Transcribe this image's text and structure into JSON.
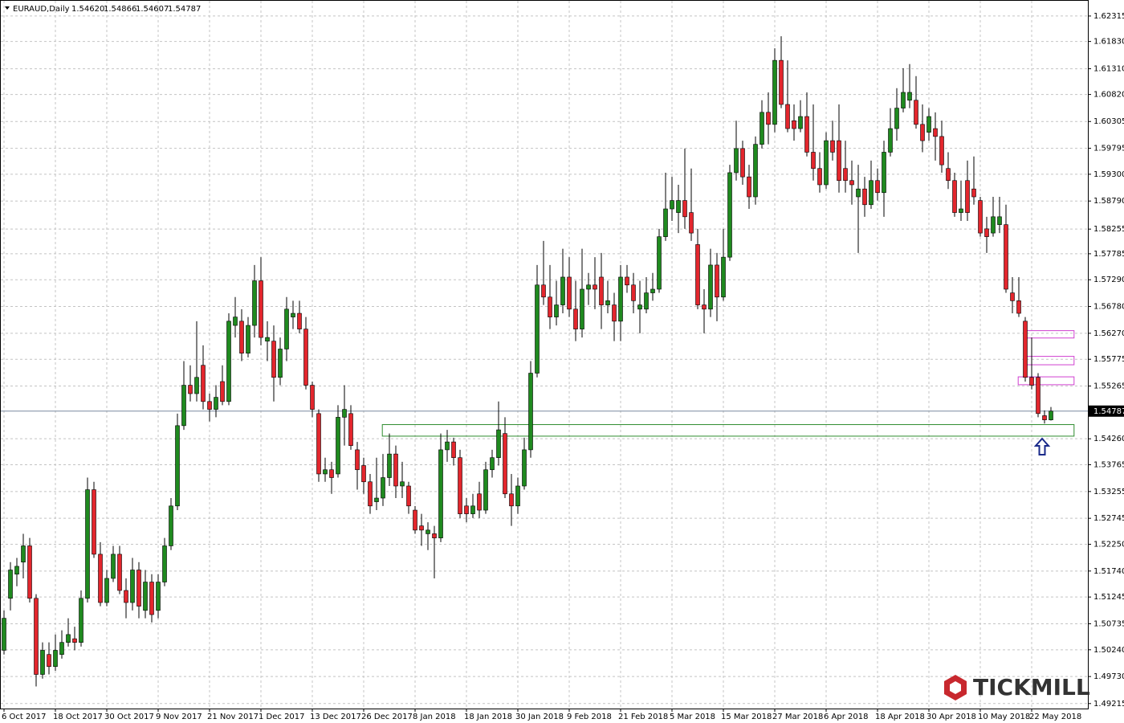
{
  "chart_data": {
    "type": "candlestick",
    "title": "EURAUD,Daily",
    "title_values": [
      "1.54620",
      "1.54866",
      "1.54607",
      "1.54787"
    ],
    "watermark": "TICKMILL",
    "up_color": "#1f8a1f",
    "down_color": "#e3262d",
    "grid": true,
    "ylim": [
      1.4912,
      1.6262
    ],
    "yticks": [
      1.62315,
      {
        "value": 1.6183,
        "label": "1.61830"
      },
      {
        "value": 1.6131,
        "label": "1.61310"
      },
      {
        "value": 1.6082,
        "label": "1.60820"
      },
      1.60305,
      1.59795,
      {
        "value": 1.593,
        "label": "1.59300"
      },
      {
        "value": 1.5879,
        "label": "1.58790"
      },
      1.58255,
      1.57785,
      {
        "value": 1.5729,
        "label": "1.57290"
      },
      {
        "value": 1.5678,
        "label": "1.56780"
      },
      {
        "value": 1.5627,
        "label": "1.56270"
      },
      1.55775,
      1.55265,
      {
        "value": 1.5426,
        "label": "1.54260"
      },
      1.53765,
      1.53255,
      1.52745,
      {
        "value": 1.5225,
        "label": "1.52250"
      },
      {
        "value": 1.5174,
        "label": "1.51740"
      },
      1.51245,
      1.50735,
      {
        "value": 1.5024,
        "label": "1.50240"
      },
      {
        "value": 1.4973,
        "label": "1.49730"
      },
      1.49215
    ],
    "current_price": {
      "value": 1.54787,
      "label": "1.54787"
    },
    "zones": [
      {
        "range": [
          1.5431,
          1.5453
        ],
        "x": [
          58.9,
          166.6
        ],
        "color": "#2e8b2e"
      },
      {
        "range": [
          1.5618,
          1.5632
        ],
        "x": [
          159.1,
          166.6
        ],
        "color": "#d040d0"
      },
      {
        "range": [
          1.5567,
          1.5583
        ],
        "x": [
          158.9,
          166.6
        ],
        "color": "#d040d0"
      },
      {
        "range": [
          1.5529,
          1.5544
        ],
        "x": [
          157.9,
          166.6
        ],
        "color": "#d040d0"
      }
    ],
    "categories": [
      "6 Oct 2017",
      null,
      null,
      null,
      null,
      null,
      null,
      null,
      "18 Oct 2017",
      null,
      null,
      null,
      null,
      null,
      null,
      null,
      "30 Oct 2017",
      null,
      null,
      null,
      null,
      null,
      null,
      null,
      "9 Nov 2017",
      null,
      null,
      null,
      null,
      null,
      null,
      null,
      "21 Nov 2017",
      null,
      null,
      null,
      null,
      null,
      null,
      null,
      "1 Dec 2017",
      null,
      null,
      null,
      null,
      null,
      null,
      null,
      "13 Dec 2017",
      null,
      null,
      null,
      null,
      null,
      null,
      null,
      "26 Dec 2017",
      null,
      null,
      null,
      null,
      null,
      null,
      null,
      "8 Jan 2018",
      null,
      null,
      null,
      null,
      null,
      null,
      null,
      "18 Jan 2018",
      null,
      null,
      null,
      null,
      null,
      null,
      null,
      "30 Jan 2018",
      null,
      null,
      null,
      null,
      null,
      null,
      null,
      "9 Feb 2018",
      null,
      null,
      null,
      null,
      null,
      null,
      null,
      "21 Feb 2018",
      null,
      null,
      null,
      null,
      null,
      null,
      null,
      "5 Mar 2018",
      null,
      null,
      null,
      null,
      null,
      null,
      null,
      "15 Mar 2018",
      null,
      null,
      null,
      null,
      null,
      null,
      null,
      "27 Mar 2018",
      null,
      null,
      null,
      null,
      null,
      null,
      null,
      "6 Apr 2018",
      null,
      null,
      null,
      null,
      null,
      null,
      null,
      "18 Apr 2018",
      null,
      null,
      null,
      null,
      null,
      null,
      null,
      "30 Apr 2018",
      null,
      null,
      null,
      null,
      null,
      null,
      null,
      "10 May 2018",
      null,
      null,
      null,
      null,
      null,
      null,
      null,
      "22 May 2018",
      null,
      null,
      null
    ],
    "ohlc": [
      [
        1.5023,
        1.5099,
        1.5015,
        1.5084
      ],
      [
        1.5122,
        1.5191,
        1.5099,
        1.5176
      ],
      [
        1.5168,
        1.5199,
        1.5145,
        1.5183
      ],
      [
        1.5191,
        1.5245,
        1.516,
        1.5222
      ],
      [
        1.5222,
        1.5237,
        1.5114,
        1.5122
      ],
      [
        1.5122,
        1.513,
        1.4954,
        1.4977
      ],
      [
        1.4977,
        1.5038,
        1.4969,
        1.5023
      ],
      [
        1.5015,
        1.5038,
        1.4977,
        1.4992
      ],
      [
        1.4992,
        1.5053,
        1.4984,
        1.5023
      ],
      [
        1.5015,
        1.5061,
        1.5007,
        1.5038
      ],
      [
        1.5038,
        1.5084,
        1.503,
        1.5053
      ],
      [
        1.5045,
        1.5068,
        1.5023,
        1.5038
      ],
      [
        1.5038,
        1.5137,
        1.503,
        1.5122
      ],
      [
        1.5122,
        1.5352,
        1.5114,
        1.5329
      ],
      [
        1.5329,
        1.5344,
        1.5199,
        1.5206
      ],
      [
        1.5206,
        1.5229,
        1.5107,
        1.5114
      ],
      [
        1.5114,
        1.5176,
        1.5107,
        1.516
      ],
      [
        1.516,
        1.5222,
        1.5153,
        1.5206
      ],
      [
        1.5206,
        1.5222,
        1.513,
        1.5137
      ],
      [
        1.5137,
        1.516,
        1.5084,
        1.5114
      ],
      [
        1.5114,
        1.5199,
        1.5099,
        1.5176
      ],
      [
        1.5176,
        1.5191,
        1.5084,
        1.5107
      ],
      [
        1.5099,
        1.5176,
        1.5084,
        1.5153
      ],
      [
        1.5153,
        1.5168,
        1.5076,
        1.5091
      ],
      [
        1.5099,
        1.5168,
        1.5084,
        1.5153
      ],
      [
        1.5153,
        1.5237,
        1.5145,
        1.5222
      ],
      [
        1.5222,
        1.5313,
        1.5214,
        1.5298
      ],
      [
        1.5298,
        1.5474,
        1.529,
        1.5451
      ],
      [
        1.5451,
        1.5574,
        1.5443,
        1.5528
      ],
      [
        1.5528,
        1.5566,
        1.5497,
        1.5512
      ],
      [
        1.5512,
        1.565,
        1.5497,
        1.5543
      ],
      [
        1.5566,
        1.5604,
        1.5482,
        1.5497
      ],
      [
        1.5497,
        1.5512,
        1.5459,
        1.5482
      ],
      [
        1.5482,
        1.5528,
        1.5467,
        1.5505
      ],
      [
        1.5535,
        1.5566,
        1.549,
        1.5497
      ],
      [
        1.5497,
        1.5665,
        1.549,
        1.565
      ],
      [
        1.5642,
        1.5696,
        1.5619,
        1.5658
      ],
      [
        1.565,
        1.5673,
        1.5574,
        1.5589
      ],
      [
        1.5589,
        1.5658,
        1.5581,
        1.5642
      ],
      [
        1.5642,
        1.5757,
        1.5619,
        1.5727
      ],
      [
        1.5727,
        1.5772,
        1.5604,
        1.5619
      ],
      [
        1.5612,
        1.565,
        1.5574,
        1.5619
      ],
      [
        1.5612,
        1.5642,
        1.5497,
        1.5543
      ],
      [
        1.5543,
        1.5619,
        1.5528,
        1.5597
      ],
      [
        1.5597,
        1.5696,
        1.5574,
        1.5673
      ],
      [
        1.5658,
        1.5689,
        1.5635,
        1.5665
      ],
      [
        1.5665,
        1.5689,
        1.5627,
        1.5635
      ],
      [
        1.5635,
        1.5658,
        1.552,
        1.5528
      ],
      [
        1.5528,
        1.5535,
        1.5467,
        1.5482
      ],
      [
        1.5474,
        1.5482,
        1.5344,
        1.5359
      ],
      [
        1.5359,
        1.539,
        1.5344,
        1.5367
      ],
      [
        1.5367,
        1.5382,
        1.5321,
        1.5352
      ],
      [
        1.5359,
        1.549,
        1.5352,
        1.5467
      ],
      [
        1.5467,
        1.5528,
        1.5413,
        1.5482
      ],
      [
        1.5474,
        1.549,
        1.5405,
        1.5413
      ],
      [
        1.5405,
        1.542,
        1.5329,
        1.5367
      ],
      [
        1.5375,
        1.539,
        1.5321,
        1.5344
      ],
      [
        1.5344,
        1.5359,
        1.5283,
        1.5298
      ],
      [
        1.5306,
        1.539,
        1.529,
        1.5313
      ],
      [
        1.5313,
        1.5397,
        1.5298,
        1.5352
      ],
      [
        1.5352,
        1.5436,
        1.5336,
        1.5397
      ],
      [
        1.5397,
        1.5413,
        1.5313,
        1.5336
      ],
      [
        1.5336,
        1.5382,
        1.5313,
        1.5344
      ],
      [
        1.5336,
        1.5344,
        1.5283,
        1.5298
      ],
      [
        1.529,
        1.5298,
        1.5245,
        1.5252
      ],
      [
        1.526,
        1.5283,
        1.5222,
        1.5252
      ],
      [
        1.5245,
        1.5267,
        1.5214,
        1.5252
      ],
      [
        1.5245,
        1.526,
        1.516,
        1.5237
      ],
      [
        1.5237,
        1.5436,
        1.5229,
        1.5405
      ],
      [
        1.5405,
        1.5443,
        1.5382,
        1.542
      ],
      [
        1.542,
        1.5428,
        1.5375,
        1.539
      ],
      [
        1.539,
        1.5405,
        1.5275,
        1.5283
      ],
      [
        1.5298,
        1.5313,
        1.5267,
        1.5283
      ],
      [
        1.5283,
        1.5321,
        1.5275,
        1.5298
      ],
      [
        1.5321,
        1.5344,
        1.5275,
        1.529
      ],
      [
        1.529,
        1.5382,
        1.5283,
        1.5367
      ],
      [
        1.5367,
        1.5405,
        1.5352,
        1.539
      ],
      [
        1.539,
        1.5497,
        1.5375,
        1.5443
      ],
      [
        1.5436,
        1.5467,
        1.5313,
        1.5321
      ],
      [
        1.5321,
        1.5359,
        1.526,
        1.5298
      ],
      [
        1.5298,
        1.5352,
        1.5283,
        1.5336
      ],
      [
        1.5336,
        1.5428,
        1.5329,
        1.5405
      ],
      [
        1.5405,
        1.5574,
        1.539,
        1.5551
      ],
      [
        1.5551,
        1.5757,
        1.5543,
        1.5719
      ],
      [
        1.5719,
        1.5803,
        1.5681,
        1.5696
      ],
      [
        1.5696,
        1.5757,
        1.5635,
        1.5658
      ],
      [
        1.5658,
        1.5727,
        1.5642,
        1.5681
      ],
      [
        1.5681,
        1.5788,
        1.5665,
        1.5734
      ],
      [
        1.5734,
        1.5772,
        1.5658,
        1.5673
      ],
      [
        1.5673,
        1.5727,
        1.5612,
        1.5635
      ],
      [
        1.5635,
        1.5788,
        1.5619,
        1.5711
      ],
      [
        1.5711,
        1.5742,
        1.5681,
        1.5719
      ],
      [
        1.5719,
        1.5772,
        1.5673,
        1.5711
      ],
      [
        1.5734,
        1.578,
        1.5635,
        1.5681
      ],
      [
        1.5681,
        1.5727,
        1.5665,
        1.5689
      ],
      [
        1.5681,
        1.5704,
        1.5612,
        1.565
      ],
      [
        1.565,
        1.5757,
        1.5612,
        1.5734
      ],
      [
        1.5734,
        1.5757,
        1.5704,
        1.5719
      ],
      [
        1.5719,
        1.5742,
        1.5665,
        1.5689
      ],
      [
        1.5673,
        1.5727,
        1.5627,
        1.5681
      ],
      [
        1.5673,
        1.5734,
        1.5665,
        1.5704
      ],
      [
        1.5704,
        1.5742,
        1.5689,
        1.5711
      ],
      [
        1.5711,
        1.5826,
        1.5704,
        1.5811
      ],
      [
        1.5811,
        1.5933,
        1.5803,
        1.5864
      ],
      [
        1.5864,
        1.5925,
        1.5841,
        1.588
      ],
      [
        1.5857,
        1.591,
        1.5818,
        1.588
      ],
      [
        1.588,
        1.5979,
        1.5826,
        1.5849
      ],
      [
        1.5857,
        1.5941,
        1.5803,
        1.5818
      ],
      [
        1.5796,
        1.5826,
        1.5673,
        1.5681
      ],
      [
        1.5681,
        1.5711,
        1.5627,
        1.5673
      ],
      [
        1.5673,
        1.5788,
        1.5658,
        1.5757
      ],
      [
        1.5757,
        1.578,
        1.565,
        1.5696
      ],
      [
        1.5696,
        1.5826,
        1.5689,
        1.5772
      ],
      [
        1.5772,
        1.5948,
        1.5765,
        1.5933
      ],
      [
        1.5933,
        1.6032,
        1.5918,
        1.5979
      ],
      [
        1.5979,
        1.5994,
        1.591,
        1.5925
      ],
      [
        1.5925,
        1.5948,
        1.5864,
        1.5887
      ],
      [
        1.5887,
        1.6002,
        1.5872,
        1.5987
      ],
      [
        1.5987,
        1.6071,
        1.5979,
        1.6048
      ],
      [
        1.6048,
        1.6086,
        1.5987,
        1.6025
      ],
      [
        1.6025,
        1.617,
        1.601,
        1.6147
      ],
      [
        1.6147,
        1.6193,
        1.6056,
        1.6063
      ],
      [
        1.6063,
        1.6147,
        1.601,
        1.6017
      ],
      [
        1.6032,
        1.6063,
        1.5994,
        1.6017
      ],
      [
        1.6017,
        1.6071,
        1.601,
        1.604
      ],
      [
        1.604,
        1.6086,
        1.5964,
        1.5972
      ],
      [
        1.5972,
        1.6063,
        1.5918,
        1.5941
      ],
      [
        1.5941,
        1.5972,
        1.5895,
        1.591
      ],
      [
        1.591,
        1.601,
        1.5902,
        1.5994
      ],
      [
        1.5994,
        1.6032,
        1.5956,
        1.5972
      ],
      [
        1.5994,
        1.6063,
        1.5895,
        1.5918
      ],
      [
        1.5941,
        1.5994,
        1.5895,
        1.5918
      ],
      [
        1.5918,
        1.5956,
        1.5872,
        1.591
      ],
      [
        1.5887,
        1.5948,
        1.578,
        1.5902
      ],
      [
        1.5902,
        1.5925,
        1.5849,
        1.5872
      ],
      [
        1.5872,
        1.5956,
        1.5864,
        1.5918
      ],
      [
        1.5918,
        1.5941,
        1.588,
        1.5895
      ],
      [
        1.5895,
        1.5994,
        1.5849,
        1.5972
      ],
      [
        1.5972,
        1.6056,
        1.5964,
        1.6017
      ],
      [
        1.6017,
        1.6094,
        1.5994,
        1.6056
      ],
      [
        1.6056,
        1.6132,
        1.6048,
        1.6086
      ],
      [
        1.6071,
        1.614,
        1.6056,
        1.6086
      ],
      [
        1.6071,
        1.6117,
        1.6017,
        1.6025
      ],
      [
        1.6025,
        1.6063,
        1.5972,
        1.5994
      ],
      [
        1.601,
        1.6056,
        1.5994,
        1.604
      ],
      [
        1.6017,
        1.6048,
        1.5956,
        1.6002
      ],
      [
        1.6002,
        1.6032,
        1.5933,
        1.5948
      ],
      [
        1.5941,
        1.5972,
        1.5902,
        1.5918
      ],
      [
        1.5918,
        1.5933,
        1.5849,
        1.5857
      ],
      [
        1.5857,
        1.5918,
        1.5841,
        1.5864
      ],
      [
        1.5918,
        1.5956,
        1.5841,
        1.5857
      ],
      [
        1.5902,
        1.5964,
        1.5872,
        1.5887
      ],
      [
        1.588,
        1.5887,
        1.5811,
        1.5818
      ],
      [
        1.5826,
        1.5849,
        1.578,
        1.5811
      ],
      [
        1.5818,
        1.5887,
        1.5811,
        1.5849
      ],
      [
        1.5834,
        1.5887,
        1.5818,
        1.5849
      ],
      [
        1.5834,
        1.5872,
        1.5704,
        1.5711
      ],
      [
        1.5704,
        1.5734,
        1.5665,
        1.5689
      ],
      [
        1.5689,
        1.5734,
        1.5658,
        1.5665
      ],
      [
        1.565,
        1.5658,
        1.5535,
        1.5543
      ],
      [
        1.5543,
        1.5619,
        1.552,
        1.5528
      ],
      [
        1.5543,
        1.5551,
        1.5467,
        1.5474
      ],
      [
        1.547,
        1.548,
        1.5455,
        1.5462
      ],
      [
        1.5462,
        1.54866,
        1.54607,
        1.54787
      ]
    ]
  }
}
